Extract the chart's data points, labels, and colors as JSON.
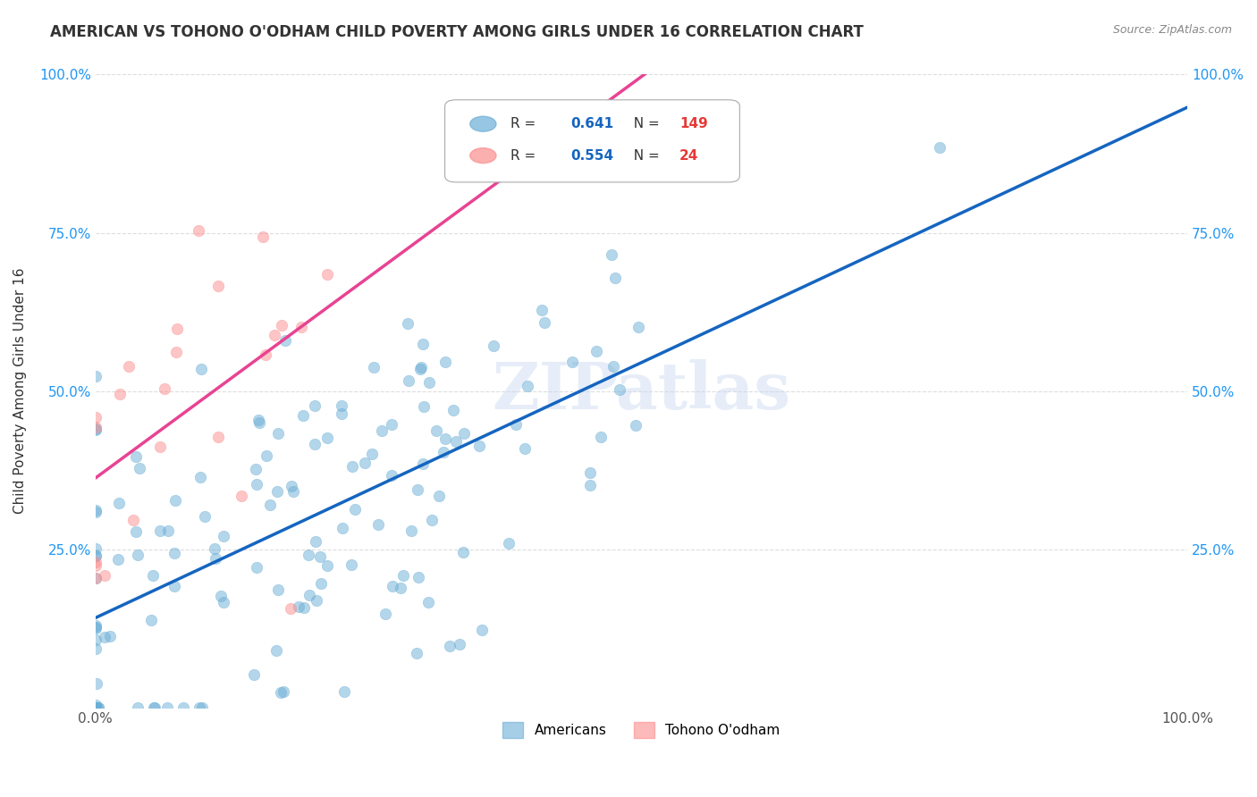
{
  "title": "AMERICAN VS TOHONO O'ODHAM CHILD POVERTY AMONG GIRLS UNDER 16 CORRELATION CHART",
  "source": "Source: ZipAtlas.com",
  "ylabel": "Child Poverty Among Girls Under 16",
  "xlabel": "",
  "r_american": 0.641,
  "n_american": 149,
  "r_tohono": 0.554,
  "n_tohono": 24,
  "color_american": "#6baed6",
  "color_tohono": "#fc8d8d",
  "trendline_american": "#1565C0",
  "trendline_tohono": "#e84393",
  "watermark": "ZIPatlas",
  "legend_label_american": "Americans",
  "legend_label_tohono": "Tohono O'odham",
  "xlim": [
    0,
    1
  ],
  "ylim": [
    0,
    1
  ],
  "xtick_labels": [
    "0.0%",
    "100.0%"
  ],
  "ytick_labels": [
    "25.0%",
    "50.0%",
    "75.0%",
    "100.0%"
  ],
  "ytick_positions": [
    0.25,
    0.5,
    0.75,
    1.0
  ],
  "background_color": "#ffffff",
  "grid_color": "#dddddd"
}
